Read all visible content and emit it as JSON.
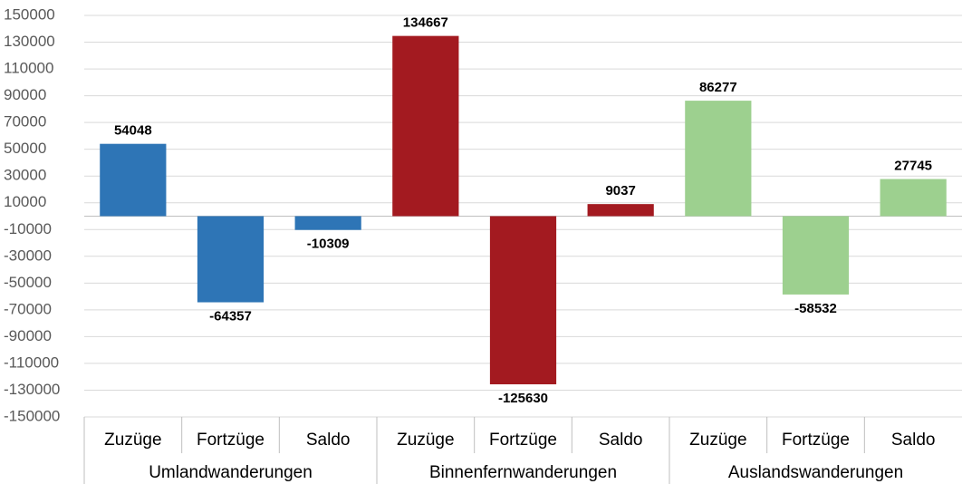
{
  "chart_data": {
    "type": "bar",
    "groups": [
      {
        "name": "Umlandwanderungen",
        "color": "#2e75b6",
        "categories": [
          "Zuzüge",
          "Fortzüge",
          "Saldo"
        ],
        "values": [
          54048,
          -64357,
          -10309
        ]
      },
      {
        "name": "Binnenfernwanderungen",
        "color": "#a31a20",
        "categories": [
          "Zuzüge",
          "Fortzüge",
          "Saldo"
        ],
        "values": [
          134667,
          -125630,
          9037
        ]
      },
      {
        "name": "Auslandswanderungen",
        "color": "#9dd08f",
        "categories": [
          "Zuzüge",
          "Fortzüge",
          "Saldo"
        ],
        "values": [
          86277,
          -58532,
          27745
        ]
      }
    ],
    "ylim": [
      -150000,
      150000
    ],
    "yticks": [
      -150000,
      -130000,
      -110000,
      -90000,
      -70000,
      -50000,
      -30000,
      -10000,
      10000,
      30000,
      50000,
      70000,
      90000,
      110000,
      130000,
      150000
    ],
    "grid": true
  }
}
